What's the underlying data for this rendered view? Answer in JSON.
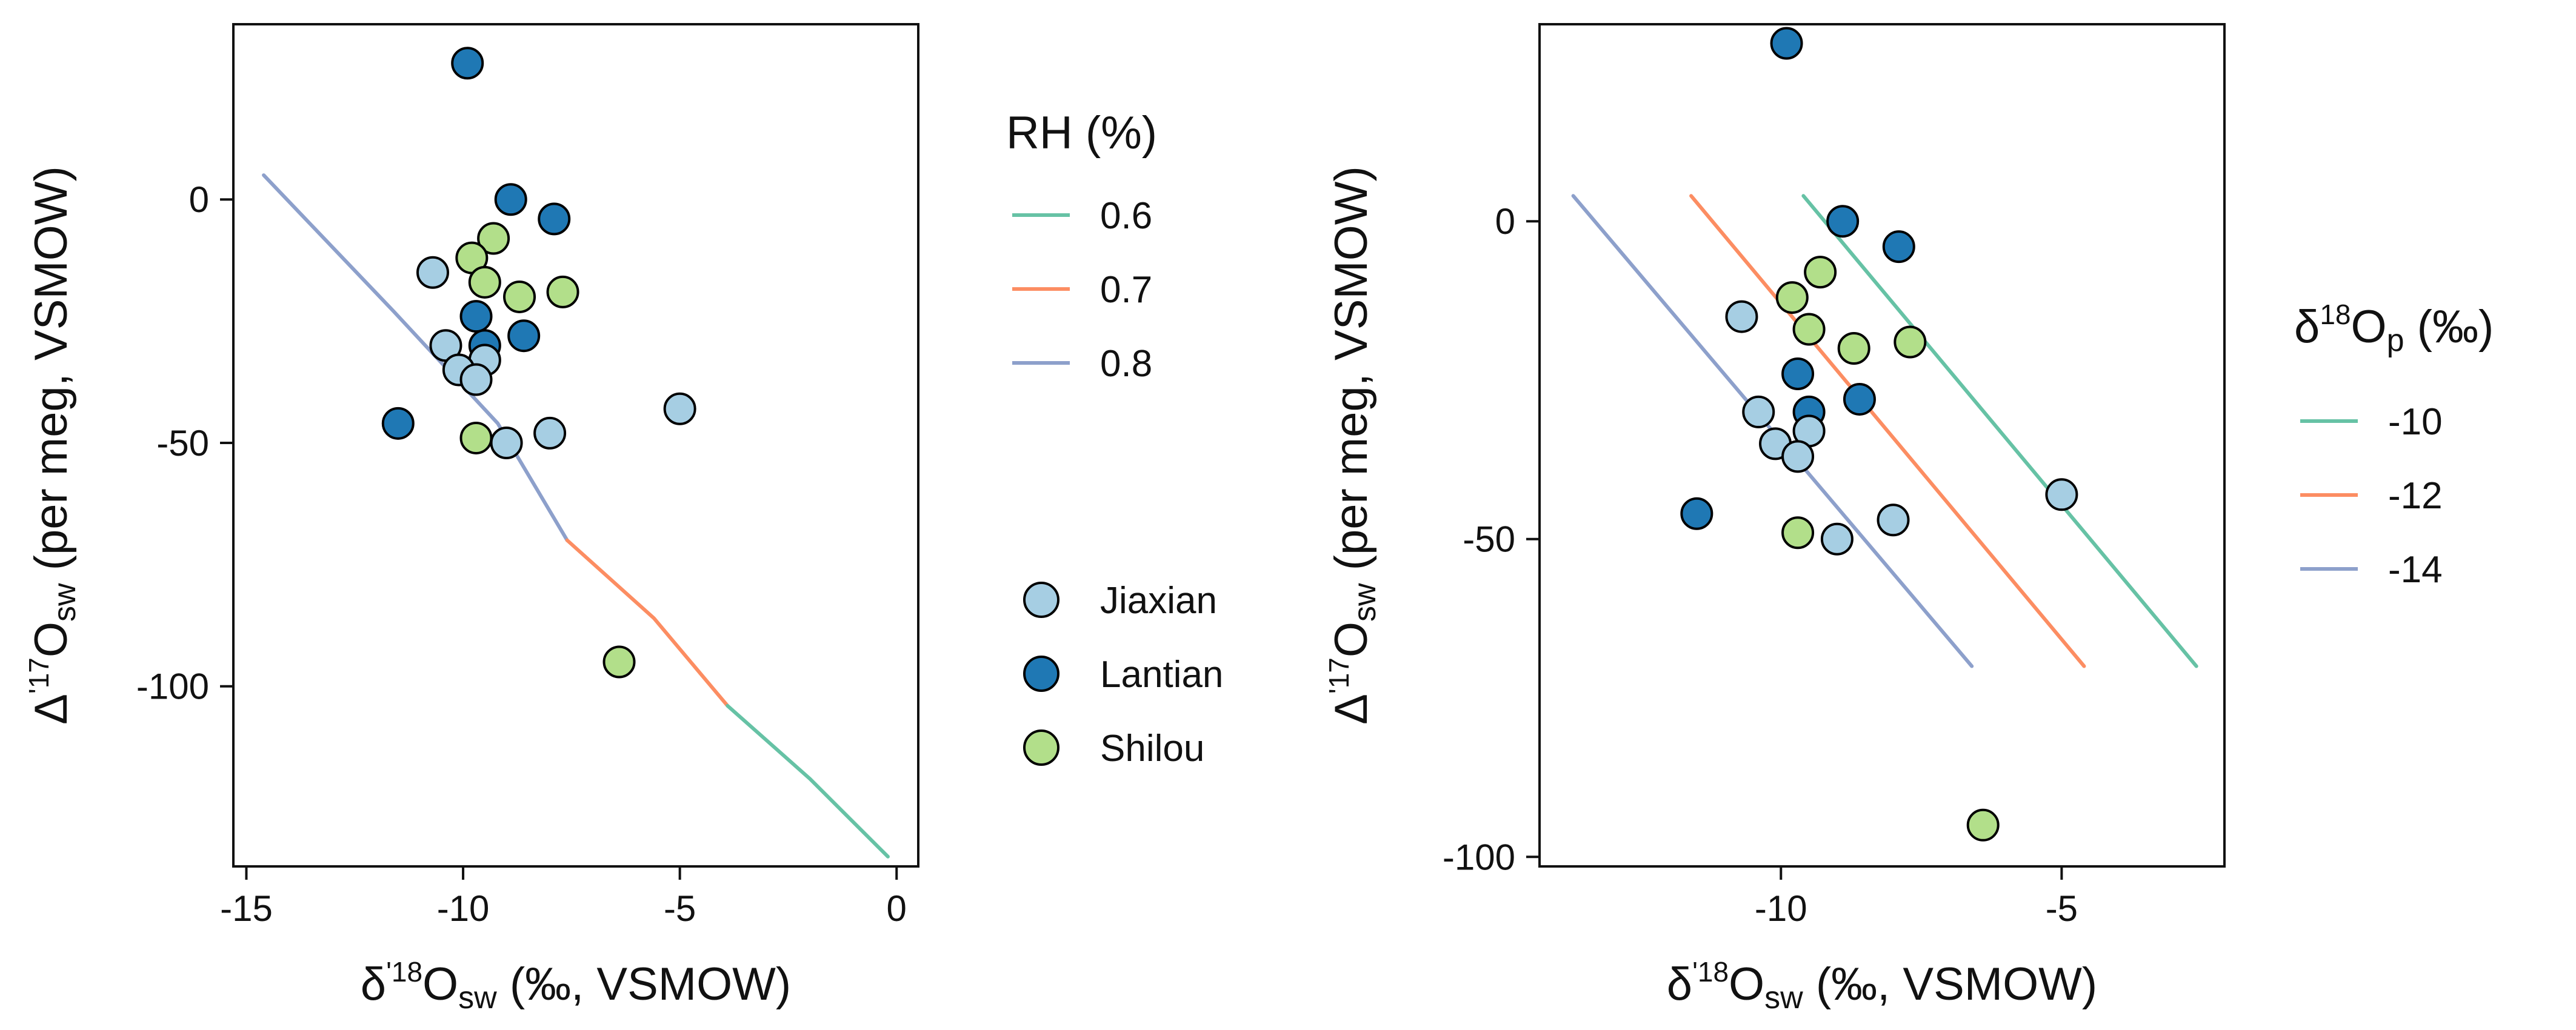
{
  "colors": {
    "Jiaxian": "#a6cee3",
    "Lantian": "#1f78b4",
    "Shilou": "#b2df8a",
    "line_green": "#66c2a5",
    "line_orange": "#fc8d62",
    "line_blue": "#8da0cb",
    "axis": "#111111"
  },
  "chart_data": [
    {
      "type": "scatter",
      "xlim": [
        -15.3,
        0.5
      ],
      "ylim": [
        -137,
        36
      ],
      "x_ticks": [
        -15,
        -10,
        -5,
        0
      ],
      "x_tick_labels": [
        "-15",
        "-10",
        "-5",
        "0"
      ],
      "y_ticks": [
        0,
        -50,
        -100
      ],
      "y_tick_labels": [
        "0",
        "-50",
        "-100"
      ],
      "xlabel": {
        "symbol": "δ",
        "sup": "'18",
        "base": "O",
        "sub": "sw",
        "rest": " (‰, VSMOW)"
      },
      "ylabel": {
        "symbol": "Δ",
        "sup": "'17",
        "base": "O",
        "sub": "sw",
        "rest": " (per meg, VSMOW)"
      },
      "grid": false,
      "legend_title": "RH (%)",
      "legend_lines": [
        {
          "label": "0.6",
          "color": "#66c2a5"
        },
        {
          "label": "0.7",
          "color": "#fc8d62"
        },
        {
          "label": "0.8",
          "color": "#8da0cb"
        }
      ],
      "legend_points": [
        {
          "label": "Jiaxian",
          "color": "#a6cee3"
        },
        {
          "label": "Lantian",
          "color": "#1f78b4"
        },
        {
          "label": "Shilou",
          "color": "#b2df8a"
        }
      ],
      "line_segments": [
        {
          "name": "0.8",
          "color": "#8da0cb",
          "x": [
            -14.6,
            -11.6,
            -9.2,
            -7.6
          ],
          "y": [
            5,
            -23,
            -46,
            -70
          ]
        },
        {
          "name": "0.7",
          "color": "#fc8d62",
          "x": [
            -7.6,
            -5.6,
            -3.9
          ],
          "y": [
            -70,
            -86,
            -104
          ]
        },
        {
          "name": "0.6",
          "color": "#66c2a5",
          "x": [
            -3.9,
            -2.0,
            -0.2
          ],
          "y": [
            -104,
            -119,
            -135
          ]
        }
      ],
      "points": [
        {
          "group": "Lantian",
          "x": -9.9,
          "y": 28
        },
        {
          "group": "Lantian",
          "x": -8.9,
          "y": 0
        },
        {
          "group": "Lantian",
          "x": -7.9,
          "y": -4
        },
        {
          "group": "Shilou",
          "x": -9.3,
          "y": -8
        },
        {
          "group": "Shilou",
          "x": -9.8,
          "y": -12
        },
        {
          "group": "Jiaxian",
          "x": -10.7,
          "y": -15
        },
        {
          "group": "Shilou",
          "x": -9.5,
          "y": -17
        },
        {
          "group": "Shilou",
          "x": -8.7,
          "y": -20
        },
        {
          "group": "Shilou",
          "x": -7.7,
          "y": -19
        },
        {
          "group": "Lantian",
          "x": -9.7,
          "y": -24
        },
        {
          "group": "Lantian",
          "x": -8.6,
          "y": -28
        },
        {
          "group": "Jiaxian",
          "x": -10.4,
          "y": -30
        },
        {
          "group": "Lantian",
          "x": -9.5,
          "y": -30
        },
        {
          "group": "Jiaxian",
          "x": -9.5,
          "y": -33
        },
        {
          "group": "Jiaxian",
          "x": -10.1,
          "y": -35
        },
        {
          "group": "Jiaxian",
          "x": -9.7,
          "y": -37
        },
        {
          "group": "Lantian",
          "x": -11.5,
          "y": -46
        },
        {
          "group": "Jiaxian",
          "x": -8.0,
          "y": -48
        },
        {
          "group": "Jiaxian",
          "x": -5.0,
          "y": -43
        },
        {
          "group": "Shilou",
          "x": -9.7,
          "y": -49
        },
        {
          "group": "Jiaxian",
          "x": -9.0,
          "y": -50
        },
        {
          "group": "Shilou",
          "x": -6.4,
          "y": -95
        }
      ]
    },
    {
      "type": "scatter",
      "xlim": [
        -14.3,
        -2.1
      ],
      "ylim": [
        -101.5,
        31
      ],
      "x_ticks": [
        -10,
        -5
      ],
      "x_tick_labels": [
        "-10",
        "-5"
      ],
      "y_ticks": [
        0,
        -50,
        -100
      ],
      "y_tick_labels": [
        "0",
        "-50",
        "-100"
      ],
      "xlabel": {
        "symbol": "δ",
        "sup": "'18",
        "base": "O",
        "sub": "sw",
        "rest": " (‰, VSMOW)"
      },
      "ylabel": {
        "symbol": "Δ",
        "sup": "'17",
        "base": "O",
        "sub": "sw",
        "rest": " (per meg, VSMOW)"
      },
      "grid": false,
      "legend_title": {
        "symbol": "δ",
        "sup": "18",
        "base": "O",
        "sub": "p",
        "rest": " (‰)"
      },
      "legend_lines": [
        {
          "label": "-10",
          "color": "#66c2a5"
        },
        {
          "label": "-12",
          "color": "#fc8d62"
        },
        {
          "label": "-14",
          "color": "#8da0cb"
        }
      ],
      "line_segments": [
        {
          "name": "-10",
          "color": "#66c2a5",
          "x": [
            -9.6,
            -2.6
          ],
          "y": [
            4,
            -70
          ]
        },
        {
          "name": "-12",
          "color": "#fc8d62",
          "x": [
            -11.6,
            -4.6
          ],
          "y": [
            4,
            -70
          ]
        },
        {
          "name": "-14",
          "color": "#8da0cb",
          "x": [
            -13.7,
            -6.6
          ],
          "y": [
            4,
            -70
          ]
        }
      ],
      "points": [
        {
          "group": "Lantian",
          "x": -9.9,
          "y": 28
        },
        {
          "group": "Lantian",
          "x": -8.9,
          "y": 0
        },
        {
          "group": "Lantian",
          "x": -7.9,
          "y": -4
        },
        {
          "group": "Shilou",
          "x": -9.3,
          "y": -8
        },
        {
          "group": "Shilou",
          "x": -9.8,
          "y": -12
        },
        {
          "group": "Jiaxian",
          "x": -10.7,
          "y": -15
        },
        {
          "group": "Shilou",
          "x": -9.5,
          "y": -17
        },
        {
          "group": "Shilou",
          "x": -8.7,
          "y": -20
        },
        {
          "group": "Shilou",
          "x": -7.7,
          "y": -19
        },
        {
          "group": "Lantian",
          "x": -9.7,
          "y": -24
        },
        {
          "group": "Lantian",
          "x": -8.6,
          "y": -28
        },
        {
          "group": "Jiaxian",
          "x": -10.4,
          "y": -30
        },
        {
          "group": "Lantian",
          "x": -9.5,
          "y": -30
        },
        {
          "group": "Jiaxian",
          "x": -9.5,
          "y": -33
        },
        {
          "group": "Jiaxian",
          "x": -10.1,
          "y": -35
        },
        {
          "group": "Jiaxian",
          "x": -9.7,
          "y": -37
        },
        {
          "group": "Lantian",
          "x": -11.5,
          "y": -46
        },
        {
          "group": "Jiaxian",
          "x": -8.0,
          "y": -47
        },
        {
          "group": "Jiaxian",
          "x": -5.0,
          "y": -43
        },
        {
          "group": "Shilou",
          "x": -9.7,
          "y": -49
        },
        {
          "group": "Jiaxian",
          "x": -9.0,
          "y": -50
        },
        {
          "group": "Shilou",
          "x": -6.4,
          "y": -95
        }
      ]
    }
  ]
}
